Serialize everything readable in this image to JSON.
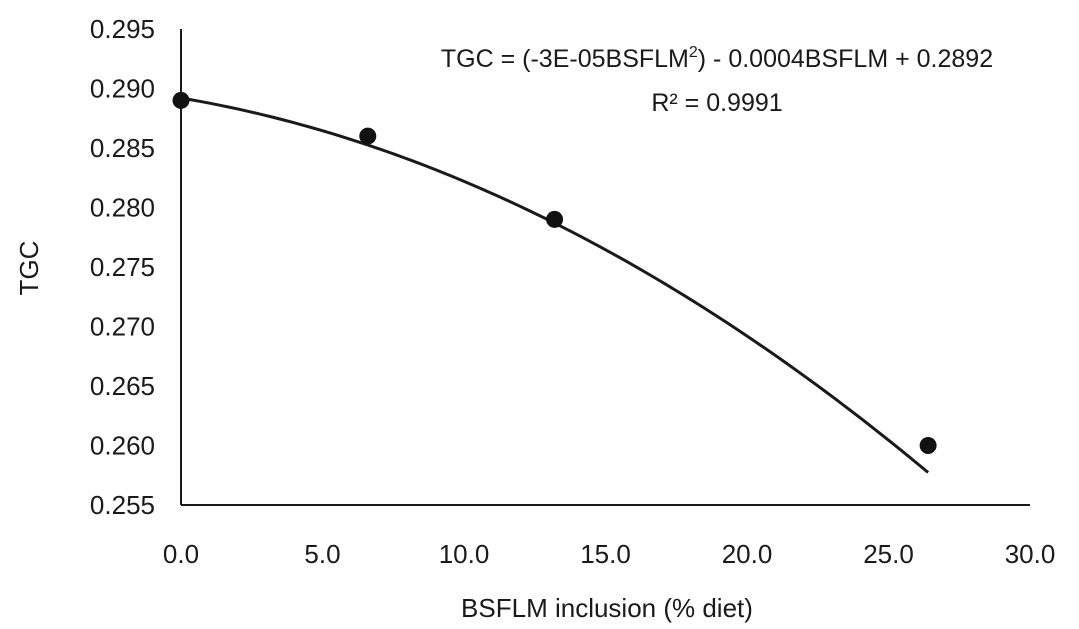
{
  "chart_data": {
    "type": "scatter",
    "title": "",
    "xlabel": "BSFLM inclusion (% diet)",
    "ylabel": "TGC",
    "xlim": [
      0,
      30
    ],
    "ylim": [
      0.255,
      0.295
    ],
    "x_ticks": [
      "0.0",
      "5.0",
      "10.0",
      "15.0",
      "20.0",
      "25.0",
      "30.0"
    ],
    "y_ticks": [
      "0.295",
      "0.290",
      "0.285",
      "0.280",
      "0.275",
      "0.270",
      "0.265",
      "0.260",
      "0.255"
    ],
    "grid": false,
    "series": [
      {
        "x": [
          0,
          6.6,
          13.2,
          26.4
        ],
        "y": [
          0.289,
          0.286,
          0.279,
          0.26
        ]
      }
    ],
    "trendline": {
      "type": "polynomial",
      "coefficients": {
        "a": -3e-05,
        "b": -0.0004,
        "c": 0.2892
      },
      "x_range": [
        0,
        26.4
      ]
    },
    "annotations": {
      "equation": {
        "prefix": "TGC = (-3E-05BSFLM",
        "sup": "2",
        "suffix": ") - 0.0004BSFLM + 0.2892"
      },
      "r_squared": "R² = 0.9991"
    }
  }
}
